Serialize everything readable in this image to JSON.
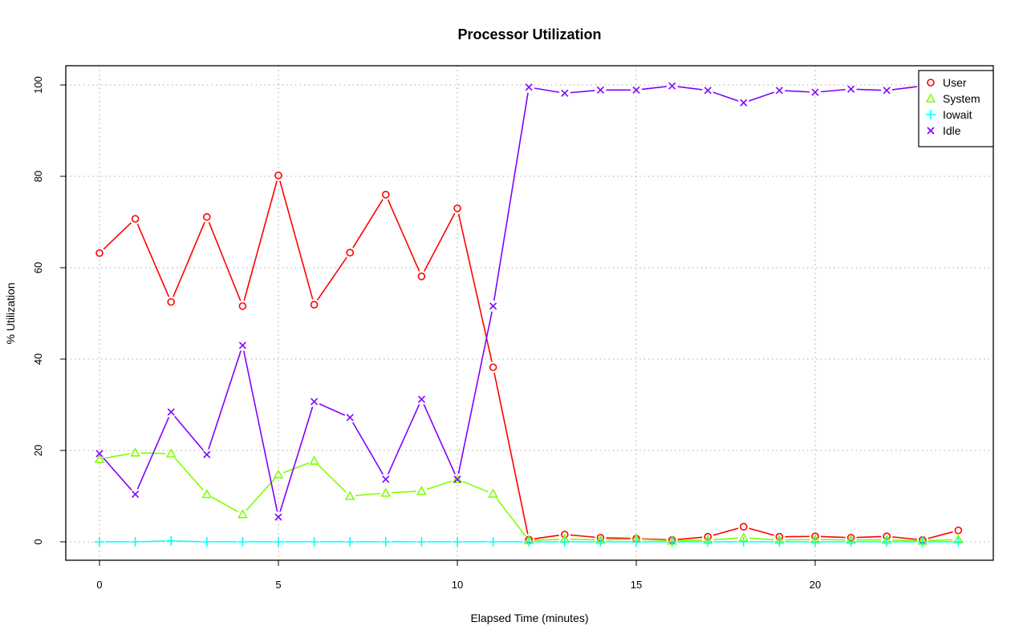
{
  "chart_data": {
    "type": "line",
    "title": "Processor Utilization",
    "xlabel": "Elapsed Time (minutes)",
    "ylabel": "% Utilization",
    "xlim": [
      -1,
      25
    ],
    "ylim": [
      -4,
      104
    ],
    "x_ticks": [
      0,
      5,
      10,
      15,
      20
    ],
    "y_ticks": [
      0,
      20,
      40,
      60,
      80,
      100
    ],
    "grid": true,
    "legend_position": "top-right",
    "x": [
      0,
      1,
      2,
      3,
      4,
      5,
      6,
      7,
      8,
      9,
      10,
      11,
      12,
      13,
      14,
      15,
      16,
      17,
      18,
      19,
      20,
      21,
      22,
      23,
      24
    ],
    "series": [
      {
        "name": "User",
        "color": "#ff0000",
        "marker": "circle",
        "values": [
          63.2,
          70.7,
          52.5,
          71.1,
          51.6,
          80.2,
          51.9,
          63.3,
          76.0,
          58.1,
          73.0,
          38.2,
          0.5,
          1.6,
          0.9,
          0.7,
          0.4,
          1.1,
          3.3,
          1.1,
          1.2,
          0.9,
          1.2,
          0.4,
          2.5
        ]
      },
      {
        "name": "System",
        "color": "#80ff00",
        "marker": "triangle",
        "values": [
          18.1,
          19.5,
          19.3,
          10.4,
          6.0,
          14.7,
          17.7,
          10.0,
          10.7,
          11.1,
          13.7,
          10.5,
          0.3,
          0.6,
          0.4,
          0.6,
          0.2,
          0.4,
          0.9,
          0.4,
          0.5,
          0.4,
          0.4,
          0.2,
          0.5
        ]
      },
      {
        "name": "Iowait",
        "color": "#00ffff",
        "marker": "plus",
        "values": [
          0.0,
          0.0,
          0.2,
          0.0,
          0.0,
          0.0,
          0.0,
          0.0,
          0.0,
          0.0,
          0.0,
          0.0,
          0.0,
          0.0,
          0.0,
          0.0,
          0.0,
          0.0,
          0.0,
          0.0,
          0.0,
          0.0,
          0.0,
          0.0,
          0.0
        ]
      },
      {
        "name": "Idle",
        "color": "#8000ff",
        "marker": "x",
        "values": [
          19.3,
          10.4,
          28.4,
          19.1,
          43.0,
          5.4,
          30.7,
          27.2,
          13.7,
          31.2,
          13.7,
          51.6,
          99.5,
          98.2,
          98.9,
          98.9,
          99.8,
          98.8,
          96.1,
          98.8,
          98.4,
          99.1,
          98.8,
          99.8,
          97.4
        ]
      }
    ]
  }
}
